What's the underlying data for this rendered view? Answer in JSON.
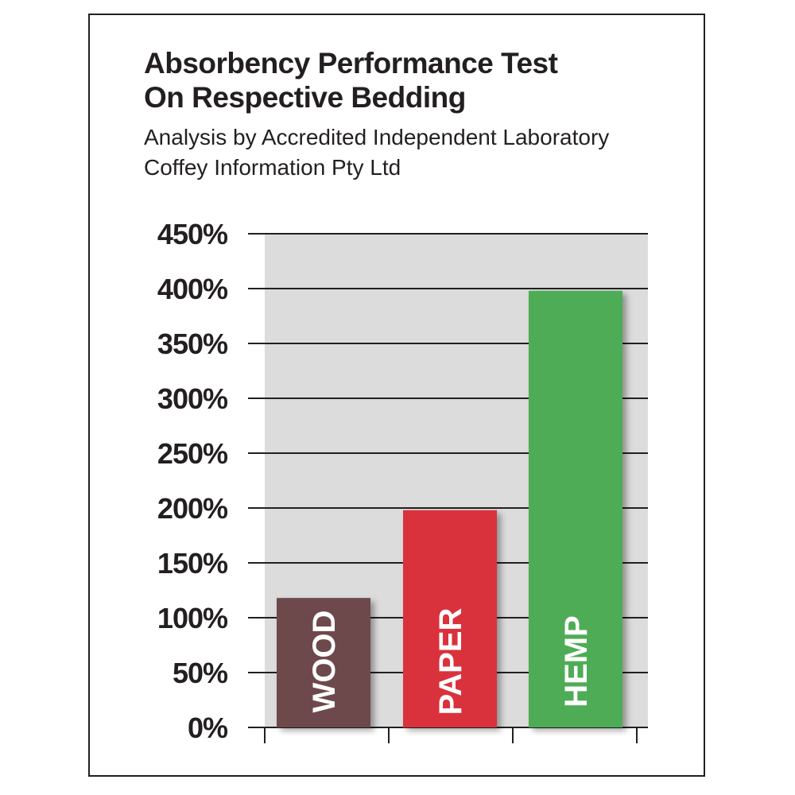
{
  "chart_data": {
    "type": "bar",
    "title_lines": [
      "Absorbency Performance Test",
      "On Respective Bedding"
    ],
    "subtitle_lines": [
      "Analysis by Accredited Independent Laboratory",
      "Coffey Information Pty Ltd"
    ],
    "categories": [
      "WOOD",
      "PAPER",
      "HEMP"
    ],
    "values": [
      118,
      198,
      398
    ],
    "colors": [
      "#6e4a4c",
      "#d9323c",
      "#4fac57"
    ],
    "ylim": [
      0,
      450
    ],
    "yticks": [
      0,
      50,
      100,
      150,
      200,
      250,
      300,
      350,
      400,
      450
    ],
    "ytick_labels": [
      "0%",
      "50%",
      "100%",
      "150%",
      "200%",
      "250%",
      "300%",
      "350%",
      "400%",
      "450%"
    ],
    "grid": true,
    "plot_background": "#dcdcdc",
    "xlabel": "",
    "ylabel": ""
  }
}
